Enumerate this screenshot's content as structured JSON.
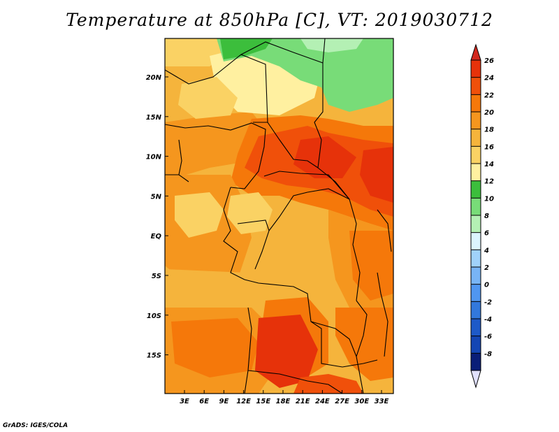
{
  "title": "Temperature at 850hPa [C], VT: 2019030712",
  "footer": "GrADS: IGES/COLA",
  "axes": {
    "lat_labels": [
      "20N",
      "15N",
      "10N",
      "5N",
      "EQ",
      "5S",
      "10S",
      "15S"
    ],
    "lon_labels": [
      "3E",
      "6E",
      "9E",
      "12E",
      "15E",
      "18E",
      "21E",
      "24E",
      "27E",
      "30E",
      "33E"
    ]
  },
  "colorbar": {
    "levels": [
      "26",
      "24",
      "22",
      "20",
      "18",
      "16",
      "14",
      "12",
      "10",
      "8",
      "6",
      "4",
      "2",
      "0",
      "-2",
      "-4",
      "-6",
      "-8"
    ],
    "colors": [
      "#e6320a",
      "#f0500a",
      "#f5780a",
      "#f5961e",
      "#f5b43c",
      "#fad264",
      "#fff0a0",
      "#3cbe3c",
      "#78dc78",
      "#b4f0b4",
      "#dcf5ff",
      "#a0d2fa",
      "#78b4f5",
      "#5096f0",
      "#3278dc",
      "#1e5ac8",
      "#1446b4",
      "#0a1e78"
    ],
    "top_cap_color": "#d2281e",
    "bottom_cap_color": "#e1e1ff"
  },
  "map_colors": {
    "base": "#f5b43c",
    "light": "#fad264",
    "pale": "#fff0a0",
    "orange": "#f5961e",
    "dark_orange": "#f5780a",
    "red": "#f0500a",
    "deep_red": "#e6320a",
    "green": "#78dc78",
    "dark_green": "#3cbe3c",
    "mint": "#b4f0b4"
  }
}
